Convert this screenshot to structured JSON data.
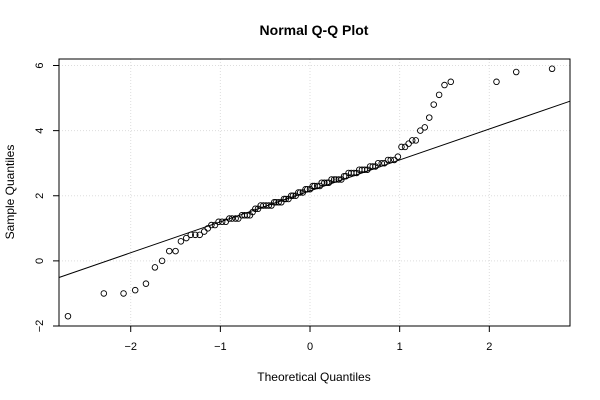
{
  "chart_data": {
    "type": "scatter",
    "title": "Normal Q-Q Plot",
    "xlabel": "Theoretical Quantiles",
    "ylabel": "Sample Quantiles",
    "xlim": [
      -2.8,
      2.9
    ],
    "ylim": [
      -2,
      6.2
    ],
    "x_ticks": [
      -2,
      -1,
      0,
      1,
      2
    ],
    "y_ticks": [
      -2,
      0,
      2,
      4,
      6
    ],
    "grid": true,
    "reference_line": {
      "intercept": 2.15,
      "slope": 0.95
    },
    "points": [
      [
        -2.7,
        -1.7
      ],
      [
        -2.3,
        -1.0
      ],
      [
        -2.08,
        -1.0
      ],
      [
        -1.95,
        -0.9
      ],
      [
        -1.83,
        -0.7
      ],
      [
        -1.73,
        -0.2
      ],
      [
        -1.65,
        0.0
      ],
      [
        -1.57,
        0.3
      ],
      [
        -1.5,
        0.3
      ],
      [
        -1.44,
        0.6
      ],
      [
        -1.38,
        0.7
      ],
      [
        -1.33,
        0.8
      ],
      [
        -1.28,
        0.8
      ],
      [
        -1.23,
        0.8
      ],
      [
        -1.18,
        0.9
      ],
      [
        -1.14,
        1.0
      ],
      [
        -1.1,
        1.1
      ],
      [
        -1.06,
        1.1
      ],
      [
        -1.02,
        1.2
      ],
      [
        -0.98,
        1.2
      ],
      [
        -0.94,
        1.2
      ],
      [
        -0.9,
        1.3
      ],
      [
        -0.87,
        1.3
      ],
      [
        -0.83,
        1.3
      ],
      [
        -0.8,
        1.3
      ],
      [
        -0.76,
        1.4
      ],
      [
        -0.73,
        1.4
      ],
      [
        -0.7,
        1.4
      ],
      [
        -0.67,
        1.4
      ],
      [
        -0.64,
        1.5
      ],
      [
        -0.61,
        1.6
      ],
      [
        -0.58,
        1.6
      ],
      [
        -0.55,
        1.7
      ],
      [
        -0.52,
        1.7
      ],
      [
        -0.49,
        1.7
      ],
      [
        -0.46,
        1.7
      ],
      [
        -0.43,
        1.7
      ],
      [
        -0.4,
        1.8
      ],
      [
        -0.38,
        1.8
      ],
      [
        -0.35,
        1.8
      ],
      [
        -0.32,
        1.8
      ],
      [
        -0.29,
        1.9
      ],
      [
        -0.27,
        1.9
      ],
      [
        -0.24,
        1.9
      ],
      [
        -0.21,
        2.0
      ],
      [
        -0.19,
        2.0
      ],
      [
        -0.16,
        2.0
      ],
      [
        -0.13,
        2.1
      ],
      [
        -0.11,
        2.1
      ],
      [
        -0.08,
        2.1
      ],
      [
        -0.05,
        2.2
      ],
      [
        -0.03,
        2.2
      ],
      [
        0.0,
        2.2
      ],
      [
        0.03,
        2.3
      ],
      [
        0.05,
        2.3
      ],
      [
        0.08,
        2.3
      ],
      [
        0.11,
        2.3
      ],
      [
        0.13,
        2.4
      ],
      [
        0.16,
        2.4
      ],
      [
        0.19,
        2.4
      ],
      [
        0.21,
        2.4
      ],
      [
        0.24,
        2.5
      ],
      [
        0.27,
        2.5
      ],
      [
        0.29,
        2.5
      ],
      [
        0.32,
        2.5
      ],
      [
        0.35,
        2.5
      ],
      [
        0.38,
        2.6
      ],
      [
        0.4,
        2.6
      ],
      [
        0.43,
        2.7
      ],
      [
        0.46,
        2.7
      ],
      [
        0.49,
        2.7
      ],
      [
        0.52,
        2.7
      ],
      [
        0.55,
        2.8
      ],
      [
        0.58,
        2.8
      ],
      [
        0.61,
        2.8
      ],
      [
        0.64,
        2.8
      ],
      [
        0.67,
        2.9
      ],
      [
        0.7,
        2.9
      ],
      [
        0.73,
        2.9
      ],
      [
        0.76,
        3.0
      ],
      [
        0.8,
        3.0
      ],
      [
        0.83,
        3.0
      ],
      [
        0.87,
        3.1
      ],
      [
        0.9,
        3.1
      ],
      [
        0.94,
        3.1
      ],
      [
        0.98,
        3.2
      ],
      [
        1.02,
        3.5
      ],
      [
        1.06,
        3.5
      ],
      [
        1.1,
        3.6
      ],
      [
        1.14,
        3.7
      ],
      [
        1.18,
        3.7
      ],
      [
        1.23,
        4.0
      ],
      [
        1.28,
        4.1
      ],
      [
        1.33,
        4.4
      ],
      [
        1.38,
        4.8
      ],
      [
        1.44,
        5.1
      ],
      [
        1.5,
        5.4
      ],
      [
        1.57,
        5.5
      ],
      [
        2.08,
        5.5
      ],
      [
        2.3,
        5.8
      ],
      [
        2.7,
        5.9
      ]
    ]
  }
}
